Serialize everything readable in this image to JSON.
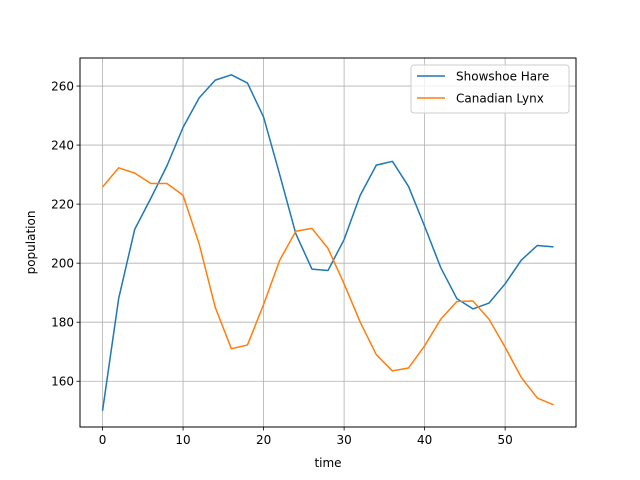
{
  "chart_data": {
    "type": "line",
    "title": "",
    "xlabel": "time",
    "ylabel": "population",
    "xlim": [
      -2.8,
      58.8
    ],
    "ylim": [
      144.5,
      269.5
    ],
    "x_ticks": [
      0,
      10,
      20,
      30,
      40,
      50
    ],
    "y_ticks": [
      160,
      180,
      200,
      220,
      240,
      260
    ],
    "grid": true,
    "legend_position": "top-right",
    "x": [
      0,
      2,
      4,
      6,
      8,
      10,
      12,
      14,
      16,
      18,
      20,
      22,
      24,
      26,
      28,
      30,
      32,
      34,
      36,
      38,
      40,
      42,
      44,
      46,
      48,
      50,
      52,
      54,
      56
    ],
    "series": [
      {
        "name": "Showshoe Hare",
        "color": "#1f77b4",
        "values": [
          150.0,
          188.0,
          211.5,
          222.0,
          233.0,
          246.0,
          256.0,
          262.0,
          263.8,
          261.0,
          249.5,
          230.0,
          210.0,
          198.0,
          197.5,
          208.0,
          223.0,
          233.2,
          234.5,
          226.0,
          212.5,
          198.5,
          188.0,
          184.5,
          186.5,
          193.0,
          201.0,
          206.0,
          205.5
        ]
      },
      {
        "name": "Canadian Lynx",
        "color": "#ff7f0e",
        "values": [
          225.8,
          232.3,
          230.5,
          227.0,
          227.0,
          223.0,
          206.5,
          185.0,
          171.0,
          172.3,
          186.0,
          201.0,
          210.8,
          211.8,
          205.0,
          193.0,
          180.0,
          169.0,
          163.5,
          164.5,
          172.0,
          181.0,
          187.0,
          187.2,
          181.0,
          171.5,
          161.3,
          154.3,
          152.0
        ]
      }
    ]
  }
}
